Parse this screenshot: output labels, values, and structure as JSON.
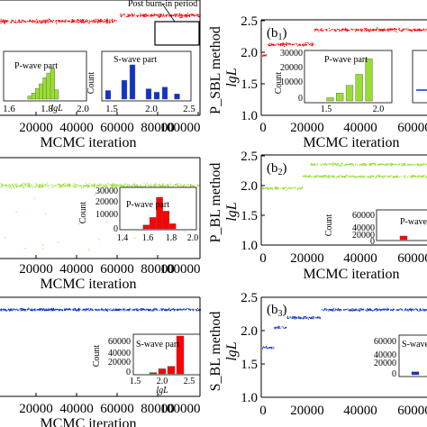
{
  "figure": {
    "annotation": "Post burn-in period",
    "panels": [
      {
        "id": "a1",
        "label": "",
        "ylabel": "",
        "xlabel": "MCMC iteration",
        "color": "#ff0000",
        "xticks": [
          "20000",
          "40000",
          "60000",
          "80000",
          "100000"
        ],
        "yticks": [],
        "inset_labels": [
          "P-wave part",
          "S-wave part"
        ]
      },
      {
        "id": "b1",
        "label_main": "(b",
        "label_sub": "1",
        "label_end": ")",
        "ylabel_top": "P_SBL method",
        "ylabel_bottom": "lgL",
        "xlabel": "MCMC iteration",
        "color": "#ff0000",
        "xticks": [
          "0",
          "20000",
          "40000",
          "60000"
        ],
        "yticks": [
          "1.0",
          "1.5",
          "2.0",
          "2.5"
        ],
        "inset_label": "P-wave part",
        "inset_yticks": [
          "30000",
          "20000",
          "10000",
          "0"
        ],
        "inset_xticks": [
          "1.5",
          "2.0"
        ],
        "inset_ylabel": "Count"
      },
      {
        "id": "a2",
        "label": "",
        "xlabel": "MCMC iteration",
        "color": "#99dd33",
        "xticks": [
          "20000",
          "40000",
          "60000",
          "80000",
          "100000"
        ],
        "inset_label": "P-wave part",
        "inset_yticks": [
          "30000",
          "20000",
          "10000",
          "0"
        ],
        "inset_xticks": [
          "1.4",
          "1.6",
          "1.8",
          "2.0"
        ],
        "inset_ylabel": "Count"
      },
      {
        "id": "b2",
        "label_main": "(b",
        "label_sub": "2",
        "label_end": ")",
        "ylabel_top": "P_BL method",
        "ylabel_bottom": "lgL",
        "xlabel": "MCMC iteration",
        "color": "#99dd33",
        "xticks": [
          "0",
          "20000",
          "40000",
          "60000"
        ],
        "yticks": [
          "1.0",
          "1.5",
          "2.0",
          "2.5"
        ],
        "inset_label": "P-wave part",
        "inset_yticks": [
          "60000",
          "40000",
          "20000",
          "0"
        ],
        "inset_ylabel": "Count"
      },
      {
        "id": "a3",
        "label": "",
        "xlabel": "MCMC iteration",
        "color": "#1133cc",
        "xticks": [
          "20000",
          "40000",
          "60000",
          "80000",
          "100000"
        ],
        "inset_label": "S-wave part",
        "inset_yticks": [
          "60000",
          "40000",
          "20000",
          "0"
        ],
        "inset_xticks": [
          "1.5",
          "2.0",
          "2.5"
        ],
        "inset_ylabel": "Count",
        "inset_xlabel": "lgL"
      },
      {
        "id": "b3",
        "label_main": "(b",
        "label_sub": "3",
        "label_end": ")",
        "ylabel_top": "S_BL method",
        "ylabel_bottom": "lgL",
        "xlabel": "MCMC iteration",
        "color": "#1133cc",
        "xticks": [
          "0",
          "20000",
          "40000",
          "60000"
        ],
        "yticks": [
          "1.0",
          "1.5",
          "2.0",
          "2.5"
        ],
        "inset_label": "S-wave",
        "inset_yticks": [
          "60000",
          "40000",
          "20000",
          "0"
        ]
      }
    ]
  },
  "chart_data": [
    {
      "type": "scatter",
      "panel": "a1",
      "xlabel": "MCMC iteration",
      "ylabel": "",
      "xlim": [
        0,
        100000
      ],
      "ylim": [
        1.5,
        2.5
      ],
      "segments": [
        {
          "x": [
            0,
            58000
          ],
          "y": 2.32
        },
        {
          "x": [
            60000,
            100000
          ],
          "y": 2.37
        }
      ],
      "insets": [
        {
          "type": "bar",
          "label": "P-wave part",
          "xlim": [
            1.6,
            2.0
          ],
          "xticks": [
            1.6,
            1.8,
            2.0
          ],
          "xlabel": "lgL",
          "x": [
            1.72,
            1.74,
            1.76,
            1.78,
            1.8,
            1.82,
            1.84,
            1.86
          ],
          "values": [
            0.1,
            0.2,
            0.35,
            0.5,
            0.7,
            0.85,
            1.0,
            0.3
          ]
        },
        {
          "type": "bar",
          "label": "S-wave part",
          "xlim": [
            1.5,
            2.5
          ],
          "xticks": [
            1.5,
            2.0,
            2.5
          ],
          "ylabel": "Count",
          "x": [
            1.5,
            1.7,
            1.8,
            2.0,
            2.1,
            2.2,
            2.35
          ],
          "values": [
            0.25,
            0.55,
            1.0,
            0.3,
            0.2,
            0.35,
            0.15
          ]
        }
      ]
    },
    {
      "type": "scatter",
      "panel": "b1",
      "xlabel": "MCMC iteration",
      "ylabel": "P_SBL method lgL",
      "xlim": [
        0,
        70000
      ],
      "ylim": [
        1.0,
        2.5
      ],
      "segments": [
        {
          "x": [
            0,
            2000
          ],
          "y": 1.95
        },
        {
          "x": [
            2000,
            22000
          ],
          "y": 2.12
        },
        {
          "x": [
            22000,
            70000
          ],
          "y": 2.35
        }
      ],
      "inset": {
        "type": "bar",
        "label": "P-wave part",
        "ylabel": "Count",
        "ylim": [
          0,
          30000
        ],
        "xticks": [
          1.5,
          2.0
        ],
        "x": [
          1.7,
          1.75,
          1.8,
          1.85,
          1.9
        ],
        "values": [
          2000,
          5000,
          10000,
          17000,
          27000
        ]
      }
    },
    {
      "type": "scatter",
      "panel": "a2",
      "xlabel": "MCMC iteration",
      "ylabel": "",
      "xlim": [
        0,
        100000
      ],
      "ylim": [
        1.4,
        2.5
      ],
      "segments": [
        {
          "x": [
            0,
            100000
          ],
          "y": 2.2
        }
      ],
      "inset": {
        "type": "bar",
        "label": "P-wave part",
        "ylabel": "Count",
        "ylim": [
          0,
          30000
        ],
        "xticks": [
          1.4,
          1.6,
          1.8,
          2.0
        ],
        "x": [
          1.74,
          1.77,
          1.8,
          1.83,
          1.86
        ],
        "values": [
          3000,
          9000,
          25000,
          14000,
          4000
        ]
      }
    },
    {
      "type": "scatter",
      "panel": "b2",
      "xlabel": "MCMC iteration",
      "ylabel": "P_BL method lgL",
      "xlim": [
        0,
        70000
      ],
      "ylim": [
        1.0,
        2.5
      ],
      "segments": [
        {
          "x": [
            0,
            17000
          ],
          "y": 1.95
        },
        {
          "x": [
            17000,
            70000
          ],
          "y": 2.15
        },
        {
          "x": [
            20000,
            70000
          ],
          "y": 2.35
        }
      ],
      "inset": {
        "type": "bar",
        "label": "P-wave part",
        "ylabel": "Count",
        "ylim": [
          0,
          60000
        ],
        "x": [
          2.4
        ],
        "values": [
          8000
        ]
      }
    },
    {
      "type": "scatter",
      "panel": "a3",
      "xlabel": "MCMC iteration",
      "ylabel": "",
      "xlim": [
        0,
        100000
      ],
      "ylim": [
        1.5,
        2.5
      ],
      "segments": [
        {
          "x": [
            0,
            100000
          ],
          "y": 2.38
        }
      ],
      "inset": {
        "type": "bar",
        "label": "S-wave part",
        "ylabel": "Count",
        "xlabel": "lgL",
        "ylim": [
          0,
          60000
        ],
        "xticks": [
          1.5,
          2.0,
          2.5
        ],
        "x": [
          2.2,
          2.25,
          2.3,
          2.35
        ],
        "values": [
          2000,
          8000,
          12000,
          60000
        ]
      }
    },
    {
      "type": "scatter",
      "panel": "b3",
      "xlabel": "MCMC iteration",
      "ylabel": "S_BL method lgL",
      "xlim": [
        0,
        70000
      ],
      "ylim": [
        1.0,
        2.5
      ],
      "segments": [
        {
          "x": [
            0,
            5000
          ],
          "y": 1.75
        },
        {
          "x": [
            5000,
            10000
          ],
          "y": 2.05
        },
        {
          "x": [
            10000,
            25000
          ],
          "y": 2.2
        },
        {
          "x": [
            25000,
            70000
          ],
          "y": 2.32
        }
      ],
      "inset": {
        "type": "bar",
        "label": "S-wave",
        "ylabel": "Count",
        "ylim": [
          0,
          60000
        ],
        "x": [
          2.35
        ],
        "values": [
          5000
        ]
      }
    }
  ]
}
